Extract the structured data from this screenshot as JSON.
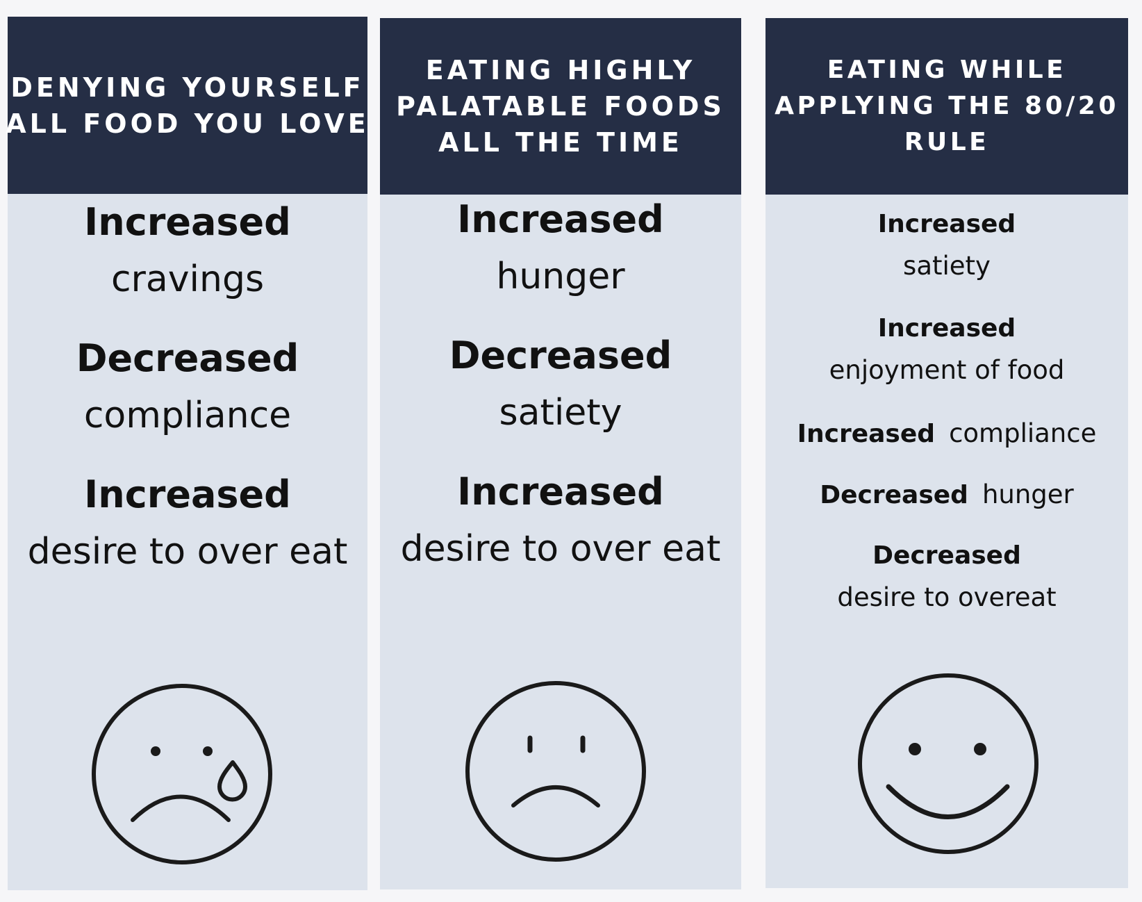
{
  "columns": [
    {
      "header_lines": [
        "DENYING YOURSELF",
        "ALL FOOD YOU LOVE"
      ],
      "items": [
        {
          "bold": "Increased",
          "text": "cravings"
        },
        {
          "bold": "Decreased",
          "text": "compliance"
        },
        {
          "bold": "Increased",
          "text": "desire to over eat"
        }
      ],
      "face": "crying-sad-face-icon"
    },
    {
      "header_lines": [
        "EATING HIGHLY",
        "PALATABLE FOODS",
        "ALL THE TIME"
      ],
      "items": [
        {
          "bold": "Increased",
          "text": "hunger"
        },
        {
          "bold": "Decreased",
          "text": "satiety"
        },
        {
          "bold": "Increased",
          "text": "desire to over eat"
        }
      ],
      "face": "sad-face-icon"
    },
    {
      "header_lines": [
        "EATING WHILE",
        "APPLYING THE 80/20",
        "RULE"
      ],
      "items": [
        {
          "bold": "Increased",
          "text": "satiety"
        },
        {
          "bold": "Increased",
          "text": "enjoyment of food"
        },
        {
          "bold": "Increased",
          "text": "compliance"
        },
        {
          "bold": "Decreased",
          "text": "hunger"
        },
        {
          "bold": "Decreased",
          "text": "desire to overeat"
        }
      ],
      "face": "happy-face-icon"
    }
  ],
  "colors": {
    "header_bg": "#252e45",
    "header_text": "#ffffff",
    "panel_bg": "#dde3ec",
    "page_bg": "#f6f6f8",
    "text": "#111111"
  }
}
